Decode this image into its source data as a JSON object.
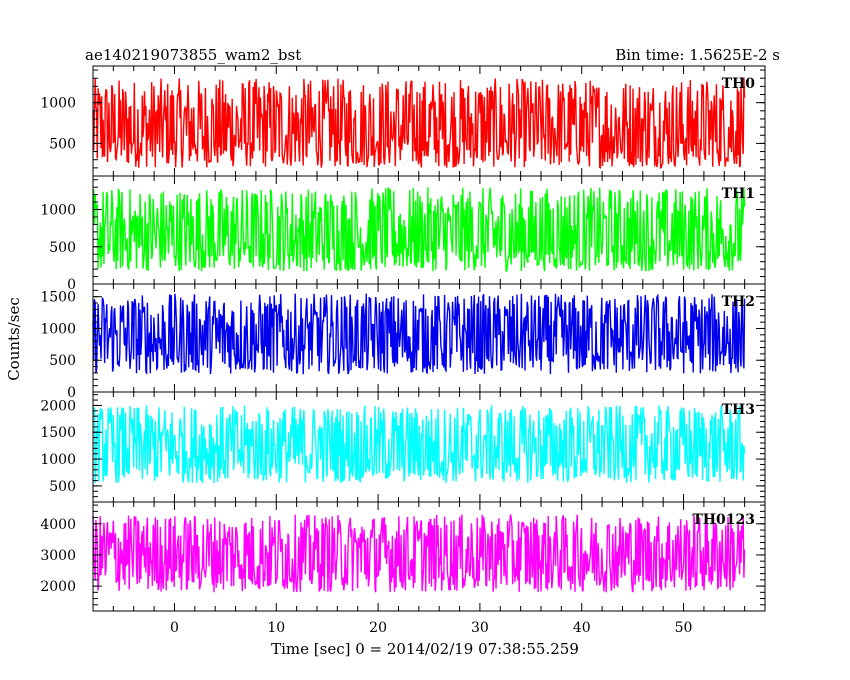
{
  "chart_data": {
    "type": "line",
    "title_left": "ae140219073855_wam2_bst",
    "title_right": "Bin time: 1.5625E-2 s",
    "xlabel": "Time [sec] 0 = 2014/02/19 07:38:55.259",
    "ylabel": "Counts/sec",
    "xlim": [
      -8,
      58
    ],
    "data_x_range": [
      -8,
      56
    ],
    "x_ticks": [
      0,
      10,
      20,
      30,
      40,
      50
    ],
    "x_tick_labels": [
      "0",
      "10",
      "20",
      "30",
      "40",
      "50"
    ],
    "grid": false,
    "panels": [
      {
        "label": "TH0",
        "color": "#ff0000",
        "ylim": [
          100,
          1450
        ],
        "y_ticks": [
          500,
          1000
        ],
        "y_tick_labels": [
          "500",
          "1000"
        ],
        "mean": 620,
        "low": 200,
        "high": 1300
      },
      {
        "label": "TH1",
        "color": "#00ff00",
        "ylim": [
          0,
          1450
        ],
        "y_ticks": [
          0,
          500,
          1000
        ],
        "y_tick_labels": [
          "0",
          "500",
          "1000"
        ],
        "mean": 600,
        "low": 170,
        "high": 1300
      },
      {
        "label": "TH2",
        "color": "#0000ee",
        "ylim": [
          0,
          1700
        ],
        "y_ticks": [
          0,
          500,
          1000,
          1500
        ],
        "y_tick_labels": [
          "0",
          "500",
          "1000",
          "1500"
        ],
        "mean": 820,
        "low": 280,
        "high": 1550
      },
      {
        "label": "TH3",
        "color": "#00ffff",
        "ylim": [
          200,
          2250
        ],
        "y_ticks": [
          500,
          1000,
          1500,
          2000
        ],
        "y_tick_labels": [
          "500",
          "1000",
          "1500",
          "2000"
        ],
        "mean": 1180,
        "low": 550,
        "high": 2000
      },
      {
        "label": "TH0123",
        "color": "#ff00ff",
        "ylim": [
          1200,
          4700
        ],
        "y_ticks": [
          2000,
          3000,
          4000
        ],
        "y_tick_labels": [
          "2000",
          "3000",
          "4000"
        ],
        "mean": 3000,
        "low": 1800,
        "high": 4300
      }
    ]
  }
}
